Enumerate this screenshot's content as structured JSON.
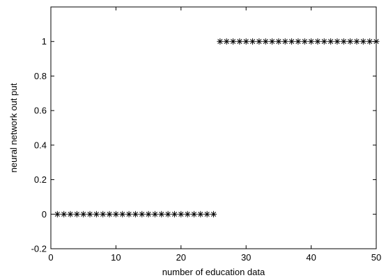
{
  "chart_data": {
    "type": "scatter",
    "title": "",
    "xlabel": "number of education data",
    "ylabel": "neural network out put",
    "xlim": [
      0,
      50
    ],
    "ylim": [
      -0.2,
      1.2
    ],
    "xticks": [
      0,
      10,
      20,
      30,
      40,
      50
    ],
    "yticks": [
      -0.2,
      0,
      0.2,
      0.4,
      0.6,
      0.8,
      1
    ],
    "xtick_labels": [
      "0",
      "10",
      "20",
      "30",
      "40",
      "50"
    ],
    "ytick_labels": [
      "-0.2",
      "0",
      "0.2",
      "0.4",
      "0.6",
      "0.8",
      "1"
    ],
    "grid": false,
    "marker": "*",
    "color": "#000000",
    "series": [
      {
        "x": [
          1,
          2,
          3,
          4,
          5,
          6,
          7,
          8,
          9,
          10,
          11,
          12,
          13,
          14,
          15,
          16,
          17,
          18,
          19,
          20,
          21,
          22,
          23,
          24,
          25,
          26,
          27,
          28,
          29,
          30,
          31,
          32,
          33,
          34,
          35,
          36,
          37,
          38,
          39,
          40,
          41,
          42,
          43,
          44,
          45,
          46,
          47,
          48,
          49,
          50
        ],
        "y": [
          0,
          0,
          0,
          0,
          0,
          0,
          0,
          0,
          0,
          0,
          0,
          0,
          0,
          0,
          0,
          0,
          0,
          0,
          0,
          0,
          0,
          0,
          0,
          0,
          0,
          1,
          1,
          1,
          1,
          1,
          1,
          1,
          1,
          1,
          1,
          1,
          1,
          1,
          1,
          1,
          1,
          1,
          1,
          1,
          1,
          1,
          1,
          1,
          1,
          1
        ]
      }
    ]
  }
}
